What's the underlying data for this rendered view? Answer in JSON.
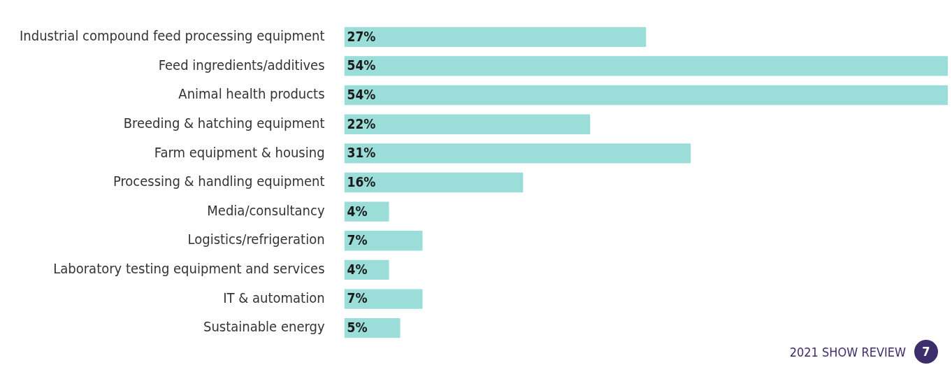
{
  "chart_data": {
    "type": "bar",
    "orientation": "horizontal",
    "categories": [
      "Industrial compound feed processing equipment",
      "Feed ingredients/additives",
      "Animal health products",
      "Breeding & hatching equipment",
      "Farm equipment & housing",
      "Processing & handling equipment",
      "Media/consultancy",
      "Logistics/refrigeration",
      "Laboratory testing equipment and services",
      "IT & automation",
      "Sustainable energy"
    ],
    "values": [
      27,
      54,
      54,
      22,
      31,
      16,
      4,
      7,
      4,
      7,
      5
    ],
    "value_labels": [
      "27%",
      "54%",
      "54%",
      "22%",
      "31%",
      "16%",
      "4%",
      "7%",
      "4%",
      "7%",
      "5%"
    ],
    "color": "#9bddd8",
    "annotations": [
      "2021 SHOW REVIEW",
      "7"
    ]
  }
}
